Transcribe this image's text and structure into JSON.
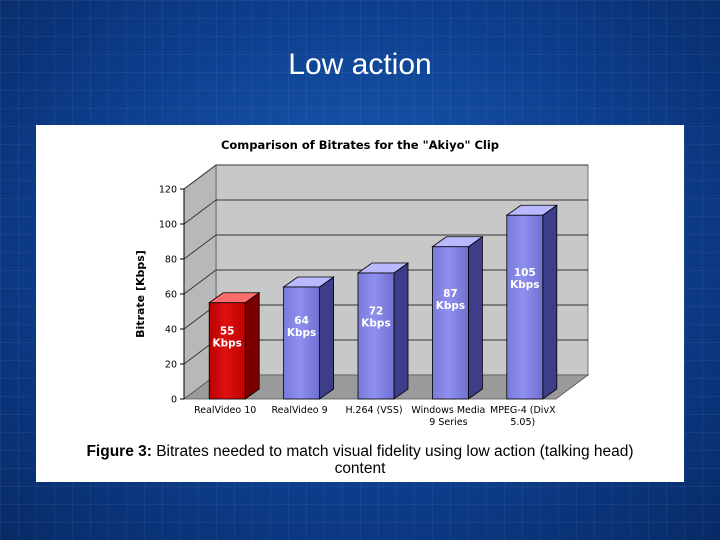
{
  "slide": {
    "title": "Low action"
  },
  "caption": {
    "label": "Figure 3:",
    "line1": "Bitrates needed to match visual fidelity using low action (talking head)",
    "line2": "content"
  },
  "chart_data": {
    "type": "bar",
    "title": "Comparison of Bitrates for the \"Akiyo\" Clip",
    "ylabel": "Bitrate [Kbps]",
    "xlabel": "",
    "ylim": [
      0,
      120
    ],
    "yticks": [
      0,
      20,
      40,
      60,
      80,
      100,
      120
    ],
    "grid": true,
    "categories": [
      [
        "RealVideo 10"
      ],
      [
        "RealVideo 9"
      ],
      [
        "H.264 (VSS)"
      ],
      [
        "Windows Media",
        "9 Series"
      ],
      [
        "MPEG-4 (DivX",
        "5.05)"
      ]
    ],
    "values": [
      55,
      64,
      72,
      87,
      105
    ],
    "value_labels": [
      [
        "55",
        "Kbps"
      ],
      [
        "64",
        "Kbps"
      ],
      [
        "72",
        "Kbps"
      ],
      [
        "87",
        "Kbps"
      ],
      [
        "105",
        "Kbps"
      ]
    ],
    "colors": {
      "highlight": "#e01010",
      "bar": "#8f8ff0",
      "floor": "#9a9a9a",
      "wall": "#c8c8c8"
    },
    "highlight_index": 0
  }
}
